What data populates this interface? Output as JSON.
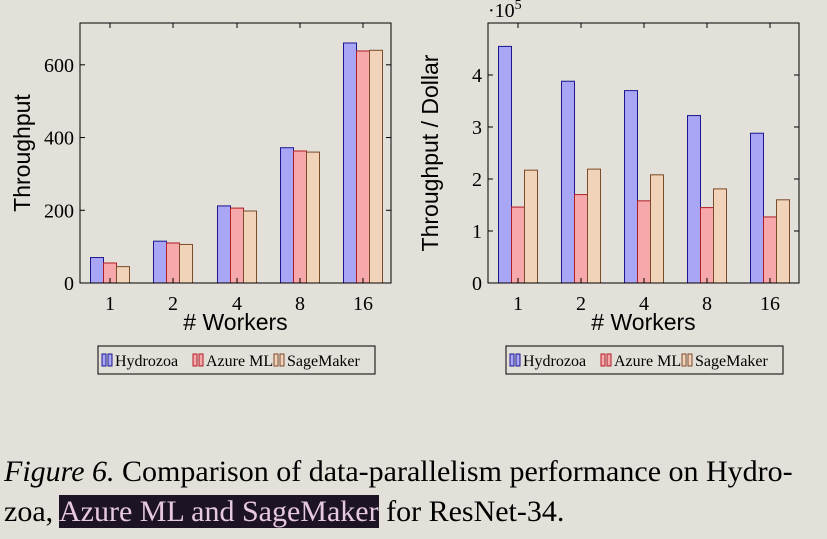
{
  "colors": {
    "hydrozoa_fill": "#a9a6f6",
    "hydrozoa_stroke": "#1a1690",
    "azure_fill": "#f7a8aa",
    "azure_stroke": "#b01c24",
    "sagemaker_fill": "#f0d3b8",
    "sagemaker_stroke": "#7a4a2a"
  },
  "chart_data": [
    {
      "type": "bar",
      "categories": [
        "1",
        "2",
        "4",
        "8",
        "16"
      ],
      "series": [
        {
          "name": "Hydrozoa",
          "values": [
            70,
            115,
            212,
            372,
            660
          ]
        },
        {
          "name": "Azure ML",
          "values": [
            55,
            110,
            206,
            363,
            638
          ]
        },
        {
          "name": "SageMaker",
          "values": [
            45,
            106,
            198,
            360,
            640
          ]
        }
      ],
      "xlabel": "# Workers",
      "ylabel": "Throughput",
      "ylim": [
        0,
        715
      ],
      "yticks": [
        0,
        200,
        400,
        600
      ],
      "yticklabels": [
        "0",
        "200",
        "400",
        "600"
      ],
      "legend": [
        "Hydrozoa",
        "Azure ML",
        "SageMaker"
      ],
      "legend_position": "bottom",
      "grid": false
    },
    {
      "type": "bar",
      "categories": [
        "1",
        "2",
        "4",
        "8",
        "16"
      ],
      "series": [
        {
          "name": "Hydrozoa",
          "values": [
            455000,
            388000,
            370000,
            322000,
            288000
          ]
        },
        {
          "name": "Azure ML",
          "values": [
            146000,
            170000,
            158000,
            145000,
            127000
          ]
        },
        {
          "name": "SageMaker",
          "values": [
            217000,
            219000,
            208000,
            181000,
            160000
          ]
        }
      ],
      "xlabel": "# Workers",
      "ylabel": "Throughput / Dollar",
      "scale_label": "·10",
      "scale_exponent": "5",
      "ylim": [
        0,
        500000
      ],
      "yticks": [
        0,
        100000,
        200000,
        300000,
        400000
      ],
      "yticklabels": [
        "0",
        "1",
        "2",
        "3",
        "4"
      ],
      "legend": [
        "Hydrozoa",
        "Azure ML",
        "SageMaker"
      ],
      "legend_position": "bottom",
      "grid": false
    }
  ],
  "caption": {
    "label": "Figure 6.",
    "text_before": " Comparison of data-parallelism performance on Hydro-zoa, ",
    "highlighted": "Azure ML and SageMaker",
    "text_after": " for ResNet-34."
  }
}
